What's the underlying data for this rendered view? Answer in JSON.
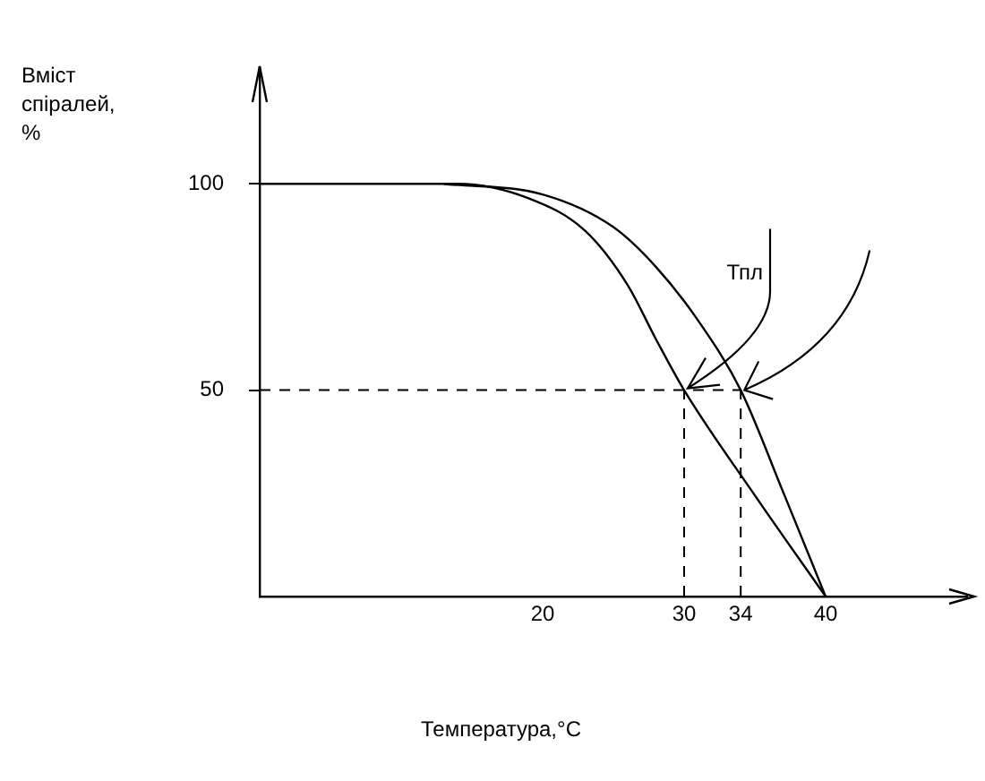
{
  "chart_data": {
    "type": "line",
    "xlabel": "Температура,°С",
    "ylabel": "Вміст спіралей, %",
    "annotations": [
      "Тпл"
    ],
    "xlim": [
      0,
      50
    ],
    "xticks": [
      20,
      30,
      34,
      40
    ],
    "ylim": [
      0,
      125
    ],
    "yticks": [
      50,
      100
    ],
    "grid": false,
    "legend": false,
    "marker": "none",
    "line_style": "solid",
    "ref_lines": [
      {
        "axis": "y",
        "value": 50,
        "line_style": "dashed"
      },
      {
        "axis": "x",
        "value": 30,
        "line_style": "dashed"
      },
      {
        "axis": "x",
        "value": 34,
        "line_style": "dashed"
      }
    ],
    "series": [
      {
        "color": "#000000",
        "x": [
          0,
          14,
          19,
          23,
          26,
          28,
          30,
          35,
          40
        ],
        "values": [
          100,
          100,
          96.5,
          88.6,
          75.5,
          62.4,
          50,
          24.5,
          0
        ]
      },
      {
        "color": "#000000",
        "x": [
          13,
          20,
          25,
          28,
          31,
          34,
          37,
          40
        ],
        "values": [
          100,
          97.4,
          89.5,
          79.9,
          66.8,
          50,
          25.3,
          0
        ]
      }
    ]
  }
}
